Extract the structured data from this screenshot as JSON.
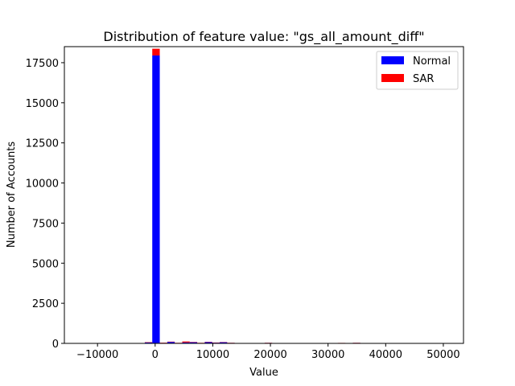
{
  "chart_data": {
    "type": "bar",
    "stacked": true,
    "title": "Distribution of feature value: \"gs_all_amount_diff\"",
    "xlabel": "Value",
    "ylabel": "Number of Accounts",
    "xlim": [
      -15750,
      53500
    ],
    "ylim": [
      0,
      18500
    ],
    "xticks": [
      -10000,
      0,
      10000,
      20000,
      30000,
      40000,
      50000
    ],
    "xtick_labels": [
      "−10000",
      "0",
      "10000",
      "20000",
      "30000",
      "40000",
      "50000"
    ],
    "yticks": [
      0,
      2500,
      5000,
      7500,
      10000,
      12500,
      15000,
      17500
    ],
    "ytick_labels": [
      "0",
      "2500",
      "5000",
      "7500",
      "10000",
      "12500",
      "15000",
      "17500"
    ],
    "grid": false,
    "legend_position": "top-right",
    "bin_width": 1300,
    "bin_starts": [
      -3100,
      -1800,
      -500,
      800,
      2100,
      3400,
      4700,
      6000,
      7300,
      8600,
      9900,
      11200,
      12500,
      13800,
      19000,
      31700,
      33000,
      34300
    ],
    "series": [
      {
        "name": "Normal",
        "color": "#0000ff",
        "values": [
          15,
          60,
          17950,
          30,
          90,
          25,
          60,
          70,
          25,
          80,
          45,
          70,
          30,
          15,
          30,
          25,
          20,
          30
        ]
      },
      {
        "name": "SAR",
        "color": "#ff0000",
        "values": [
          5,
          20,
          420,
          15,
          20,
          10,
          60,
          20,
          10,
          20,
          10,
          15,
          5,
          5,
          5,
          5,
          5,
          5
        ]
      }
    ]
  }
}
